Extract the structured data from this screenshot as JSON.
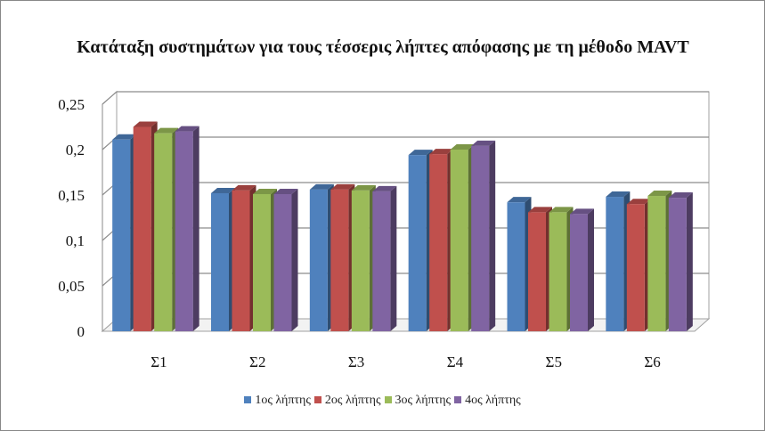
{
  "chart_data": {
    "type": "bar",
    "title": "Κατάταξη συστημάτων για τους τέσσερις λήπτες απόφασης με τη μέθοδο MAVT",
    "categories": [
      "Σ1",
      "Σ2",
      "Σ3",
      "Σ4",
      "Σ5",
      "Σ6"
    ],
    "series": [
      {
        "name": "1ος λήπτης",
        "color": "#4F81BD",
        "values": [
          0.211,
          0.152,
          0.156,
          0.194,
          0.142,
          0.148
        ]
      },
      {
        "name": "2ος λήπτης",
        "color": "#C0504D",
        "values": [
          0.225,
          0.155,
          0.156,
          0.195,
          0.131,
          0.14
        ]
      },
      {
        "name": "3ος λήπτης",
        "color": "#9BBB59",
        "values": [
          0.218,
          0.151,
          0.155,
          0.2,
          0.131,
          0.149
        ]
      },
      {
        "name": "4ος λήπτης",
        "color": "#8064A2",
        "values": [
          0.22,
          0.151,
          0.154,
          0.204,
          0.129,
          0.147
        ]
      }
    ],
    "ylim": [
      0,
      0.25
    ],
    "yticks": [
      "0",
      "0,05",
      "0,1",
      "0,15",
      "0,2",
      "0,25"
    ],
    "ytick_values": [
      0,
      0.05,
      0.1,
      0.15,
      0.2,
      0.25
    ],
    "grid": true,
    "legend": "bottom",
    "style": "3d-clustered-column"
  }
}
